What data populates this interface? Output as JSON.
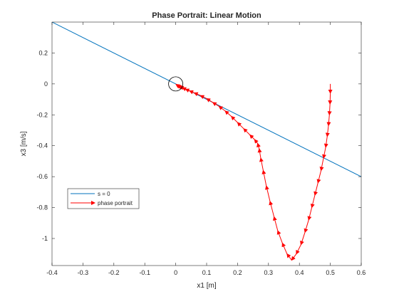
{
  "chart_data": {
    "type": "line",
    "title": "Phase Portrait: Linear Motion",
    "xlabel": "x1 [m]",
    "ylabel": "x3 [m/s]",
    "xlim": [
      -0.4,
      0.6
    ],
    "ylim": [
      -1.175,
      0.4
    ],
    "xticks": [
      -0.4,
      -0.3,
      -0.2,
      -0.1,
      0,
      0.1,
      0.2,
      0.3,
      0.4,
      0.5,
      0.6
    ],
    "xtick_labels": [
      "-0.4",
      "-0.3",
      "-0.2",
      "-0.1",
      "0",
      "0.1",
      "0.2",
      "0.3",
      "0.4",
      "0.5",
      "0.6"
    ],
    "yticks": [
      0.2,
      0,
      -0.2,
      -0.4,
      -0.6,
      -0.8,
      -1
    ],
    "ytick_labels": [
      "0.2",
      "0",
      "-0.2",
      "-0.4",
      "-0.6",
      "-0.8",
      "-1"
    ],
    "grid": false,
    "legend": {
      "placement": "lower-left"
    },
    "series": [
      {
        "name": "s = 0",
        "style": "line",
        "color": "#0072BD",
        "x": [
          -0.4,
          0.6
        ],
        "y": [
          0.4,
          -0.6
        ]
      },
      {
        "name": "phase portrait",
        "style": "quiver",
        "color": "#FF0000",
        "x": [
          0.5,
          0.5,
          0.499,
          0.497,
          0.494,
          0.49,
          0.485,
          0.478,
          0.47,
          0.46,
          0.45,
          0.44,
          0.43,
          0.418,
          0.405,
          0.39,
          0.375,
          0.36,
          0.345,
          0.33,
          0.318,
          0.305,
          0.293,
          0.283,
          0.275,
          0.27,
          0.265,
          0.255,
          0.24,
          0.22,
          0.2,
          0.18,
          0.16,
          0.14,
          0.12,
          0.1,
          0.08,
          0.06,
          0.045,
          0.032,
          0.022,
          0.014,
          0.008,
          0.004,
          0.001
        ],
        "y": [
          0.0,
          -0.06,
          -0.13,
          -0.2,
          -0.27,
          -0.34,
          -0.41,
          -0.48,
          -0.56,
          -0.64,
          -0.72,
          -0.8,
          -0.88,
          -0.96,
          -1.04,
          -1.1,
          -1.14,
          -1.1,
          -1.03,
          -0.95,
          -0.86,
          -0.76,
          -0.66,
          -0.56,
          -0.48,
          -0.42,
          -0.385,
          -0.36,
          -0.33,
          -0.29,
          -0.25,
          -0.21,
          -0.175,
          -0.145,
          -0.12,
          -0.095,
          -0.075,
          -0.058,
          -0.045,
          -0.034,
          -0.025,
          -0.018,
          -0.012,
          -0.007,
          -0.003
        ]
      }
    ],
    "annotations": [
      {
        "type": "circle",
        "x": 0,
        "y": 0,
        "color": "#000000"
      }
    ]
  }
}
